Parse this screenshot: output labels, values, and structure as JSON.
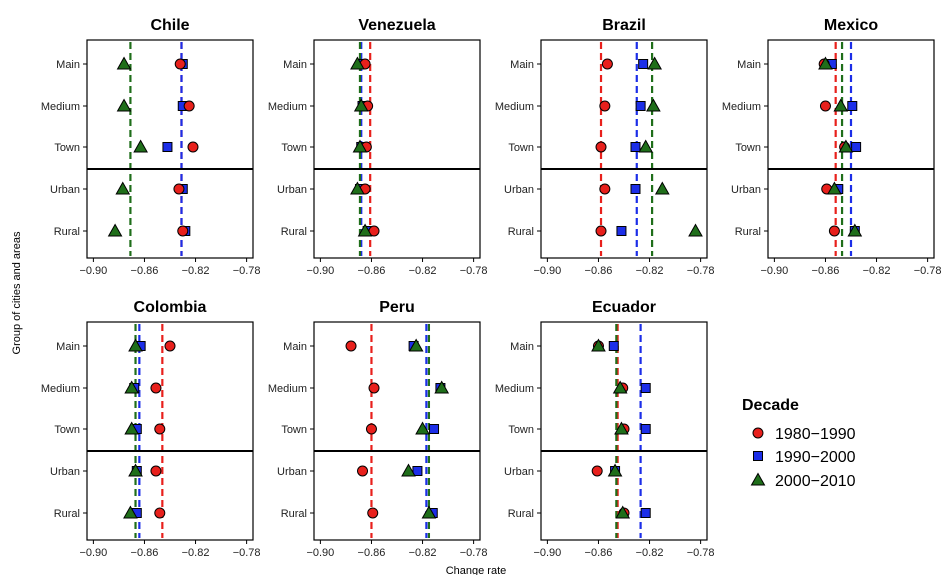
{
  "chart_data": {
    "type": "scatter",
    "xlabel": "Change rate",
    "ylabel": "Group of cities and areas",
    "xlim": [
      -0.905,
      -0.775
    ],
    "xticks": [
      -0.9,
      -0.86,
      -0.82,
      -0.78
    ],
    "xtick_labels": [
      "−0.90",
      "−0.86",
      "−0.82",
      "−0.78"
    ],
    "categories": [
      "Main",
      "Medium",
      "Town",
      "Urban",
      "Rural"
    ],
    "separator": "between Town and Urban",
    "grid": false,
    "legend": {
      "title": "Decade",
      "placement": "bottom-right",
      "entries": [
        {
          "label": "1980−1990",
          "marker": "circle",
          "color": "#e8201c"
        },
        {
          "label": "1990−2000",
          "marker": "square",
          "color": "#1c2ee8"
        },
        {
          "label": "2000−2010",
          "marker": "triangle",
          "color": "#1f6e1a"
        }
      ]
    },
    "panels": [
      {
        "title": "Chile",
        "means": [
          -0.831,
          -0.831,
          -0.871
        ],
        "series": [
          [
            -0.832,
            -0.825,
            -0.822,
            -0.833,
            -0.83
          ],
          [
            -0.83,
            -0.83,
            -0.842,
            -0.83,
            -0.828
          ],
          [
            -0.876,
            -0.876,
            -0.863,
            -0.877,
            -0.883
          ]
        ]
      },
      {
        "title": "Venezuela",
        "means": [
          -0.861,
          -0.868,
          -0.869
        ],
        "series": [
          [
            -0.865,
            -0.863,
            -0.864,
            -0.865,
            -0.858
          ],
          [
            -0.868,
            -0.867,
            -0.868,
            -0.869,
            -0.863
          ],
          [
            -0.871,
            -0.868,
            -0.869,
            -0.871,
            -0.865
          ]
        ]
      },
      {
        "title": "Brazil",
        "means": [
          -0.858,
          -0.83,
          -0.818
        ],
        "series": [
          [
            -0.853,
            -0.855,
            -0.858,
            -0.855,
            -0.858
          ],
          [
            -0.825,
            -0.827,
            -0.831,
            -0.831,
            -0.842
          ],
          [
            -0.816,
            -0.817,
            -0.823,
            -0.81,
            -0.784
          ]
        ]
      },
      {
        "title": "Mexico",
        "means": [
          -0.852,
          -0.84,
          -0.847
        ],
        "series": [
          [
            -0.861,
            -0.86,
            -0.845,
            -0.859,
            -0.853
          ],
          [
            -0.855,
            -0.839,
            -0.836,
            -0.85,
            -0.837
          ],
          [
            -0.86,
            -0.848,
            -0.844,
            -0.853,
            -0.837
          ]
        ]
      },
      {
        "title": "Colombia",
        "means": [
          -0.846,
          -0.864,
          -0.867
        ],
        "series": [
          [
            -0.84,
            -0.851,
            -0.848,
            -0.851,
            -0.848
          ],
          [
            -0.863,
            -0.868,
            -0.866,
            -0.866,
            -0.866
          ],
          [
            -0.867,
            -0.87,
            -0.87,
            -0.867,
            -0.871
          ]
        ]
      },
      {
        "title": "Peru",
        "means": [
          -0.86,
          -0.817,
          -0.815
        ],
        "series": [
          [
            -0.876,
            -0.858,
            -0.86,
            -0.867,
            -0.859
          ],
          [
            -0.827,
            -0.806,
            -0.811,
            -0.824,
            -0.812
          ],
          [
            -0.825,
            -0.805,
            -0.82,
            -0.831,
            -0.815
          ]
        ]
      },
      {
        "title": "Ecuador",
        "means": [
          -0.845,
          -0.827,
          -0.846
        ],
        "series": [
          [
            -0.86,
            -0.841,
            -0.84,
            -0.861,
            -0.84
          ],
          [
            -0.848,
            -0.823,
            -0.823,
            -0.847,
            -0.823
          ],
          [
            -0.86,
            -0.843,
            -0.842,
            -0.847,
            -0.841
          ]
        ]
      }
    ]
  }
}
